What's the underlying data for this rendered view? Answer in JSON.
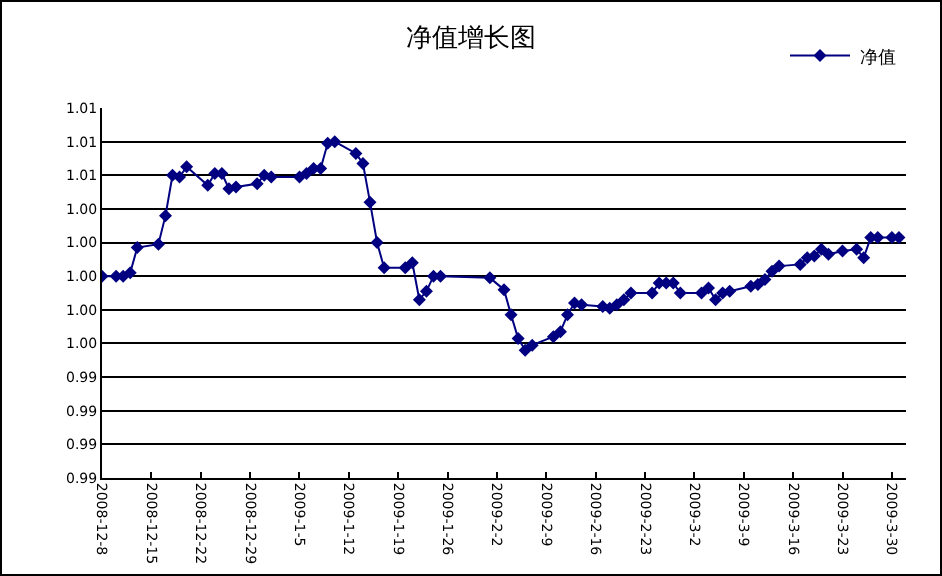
{
  "chart_data": {
    "type": "line",
    "title": "净值增长图",
    "legend": "top right",
    "grid": "y",
    "marker": "diamond",
    "line_style": "solid",
    "xlim": [
      "2008-12-08",
      "2009-04-01"
    ],
    "xticks": [
      {
        "value": "2008-12-08",
        "label": "2008-12-8"
      },
      {
        "value": "2008-12-15",
        "label": "2008-12-15"
      },
      {
        "value": "2008-12-22",
        "label": "2008-12-22"
      },
      {
        "value": "2008-12-29",
        "label": "2008-12-29"
      },
      {
        "value": "2009-01-05",
        "label": "2009-1-5"
      },
      {
        "value": "2009-01-12",
        "label": "2009-1-12"
      },
      {
        "value": "2009-01-19",
        "label": "2009-1-19"
      },
      {
        "value": "2009-01-26",
        "label": "2009-1-26"
      },
      {
        "value": "2009-02-02",
        "label": "2009-2-2"
      },
      {
        "value": "2009-02-09",
        "label": "2009-2-9"
      },
      {
        "value": "2009-02-16",
        "label": "2009-2-16"
      },
      {
        "value": "2009-02-23",
        "label": "2009-2-23"
      },
      {
        "value": "2009-03-02",
        "label": "2009-3-2"
      },
      {
        "value": "2009-03-09",
        "label": "2009-3-9"
      },
      {
        "value": "2009-03-16",
        "label": "2009-3-16"
      },
      {
        "value": "2009-03-23",
        "label": "2009-3-23"
      },
      {
        "value": "2009-03-30",
        "label": "2009-3-30"
      }
    ],
    "ylim": [
      0.988,
      1.01
    ],
    "yticks": [
      {
        "value": 0.988,
        "label": "0.99"
      },
      {
        "value": 0.99,
        "label": "0.99"
      },
      {
        "value": 0.992,
        "label": "0.99"
      },
      {
        "value": 0.994,
        "label": "0.99"
      },
      {
        "value": 0.996,
        "label": "1.00"
      },
      {
        "value": 0.998,
        "label": "1.00"
      },
      {
        "value": 1.0,
        "label": "1.00"
      },
      {
        "value": 1.002,
        "label": "1.00"
      },
      {
        "value": 1.004,
        "label": "1.00"
      },
      {
        "value": 1.006,
        "label": "1.01"
      },
      {
        "value": 1.008,
        "label": "1.01"
      },
      {
        "value": 1.01,
        "label": "1.01"
      }
    ],
    "series": [
      {
        "name": "净值",
        "color": "#000080",
        "x": [
          "2008-12-08",
          "2008-12-10",
          "2008-12-11",
          "2008-12-12",
          "2008-12-13",
          "2008-12-16",
          "2008-12-17",
          "2008-12-18",
          "2008-12-19",
          "2008-12-20",
          "2008-12-23",
          "2008-12-24",
          "2008-12-25",
          "2008-12-26",
          "2008-12-27",
          "2008-12-30",
          "2008-12-31",
          "2009-01-01",
          "2009-01-05",
          "2009-01-06",
          "2009-01-07",
          "2009-01-08",
          "2009-01-09",
          "2009-01-10",
          "2009-01-13",
          "2009-01-14",
          "2009-01-15",
          "2009-01-16",
          "2009-01-17",
          "2009-01-20",
          "2009-01-21",
          "2009-01-22",
          "2009-01-23",
          "2009-01-24",
          "2009-01-25",
          "2009-02-01",
          "2009-02-03",
          "2009-02-04",
          "2009-02-05",
          "2009-02-06",
          "2009-02-07",
          "2009-02-10",
          "2009-02-11",
          "2009-02-12",
          "2009-02-13",
          "2009-02-14",
          "2009-02-17",
          "2009-02-18",
          "2009-02-19",
          "2009-02-20",
          "2009-02-21",
          "2009-02-24",
          "2009-02-25",
          "2009-02-26",
          "2009-02-27",
          "2009-02-28",
          "2009-03-03",
          "2009-03-04",
          "2009-03-05",
          "2009-03-06",
          "2009-03-07",
          "2009-03-10",
          "2009-03-11",
          "2009-03-12",
          "2009-03-13",
          "2009-03-14",
          "2009-03-17",
          "2009-03-18",
          "2009-03-19",
          "2009-03-20",
          "2009-03-21",
          "2009-03-23",
          "2009-03-25",
          "2009-03-26",
          "2009-03-27",
          "2009-03-28",
          "2009-03-30",
          "2009-03-31"
        ],
        "values": [
          1.0,
          1.0,
          1.0,
          1.0002,
          1.0017,
          1.0019,
          1.0036,
          1.006,
          1.0059,
          1.0065,
          1.0054,
          1.0061,
          1.0061,
          1.0052,
          1.0053,
          1.0055,
          1.006,
          1.0059,
          1.0059,
          1.0061,
          1.0064,
          1.0064,
          1.0079,
          1.008,
          1.0073,
          1.0067,
          1.0044,
          1.002,
          1.0005,
          1.0005,
          1.0008,
          0.9986,
          0.9991,
          1.0,
          1.0,
          0.9999,
          0.9992,
          0.9977,
          0.9963,
          0.9956,
          0.9959,
          0.9964,
          0.9967,
          0.9977,
          0.9984,
          0.9983,
          0.9982,
          0.9981,
          0.9983,
          0.9986,
          0.999,
          0.999,
          0.9996,
          0.9996,
          0.9996,
          0.999,
          0.999,
          0.9993,
          0.9986,
          0.999,
          0.9991,
          0.9994,
          0.9995,
          0.9998,
          1.0003,
          1.0006,
          1.0007,
          1.0011,
          1.0012,
          1.0016,
          1.0013,
          1.0015,
          1.0016,
          1.0011,
          1.0023,
          1.0023,
          1.0023,
          1.0023
        ]
      }
    ]
  }
}
